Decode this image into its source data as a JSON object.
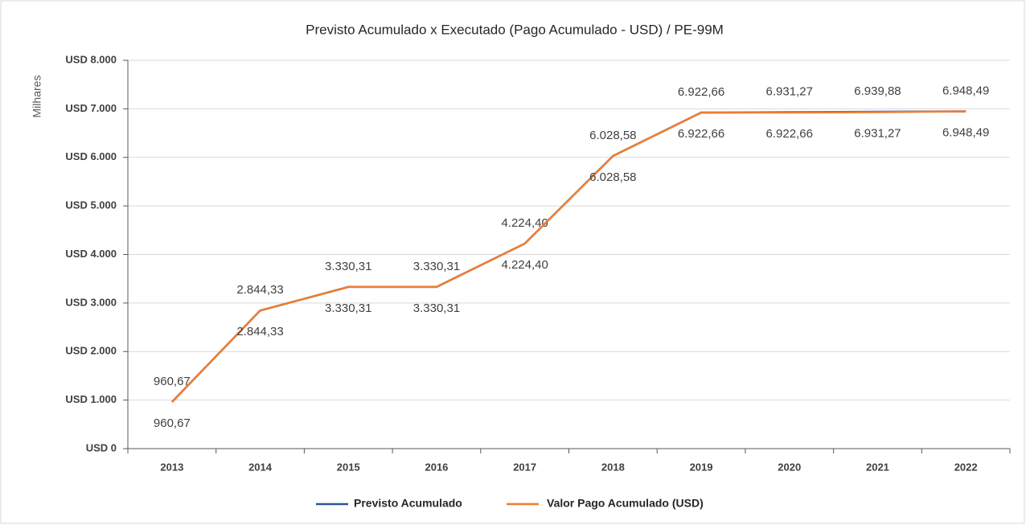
{
  "chart_data": {
    "type": "line",
    "title": "Previsto Acumulado x Executado (Pago Acumulado - USD) / PE-99M",
    "y_axis_label": "Milhares",
    "categories": [
      "2013",
      "2014",
      "2015",
      "2016",
      "2017",
      "2018",
      "2019",
      "2020",
      "2021",
      "2022"
    ],
    "series": [
      {
        "name": "Previsto Acumulado",
        "color": "#2f5597",
        "values": [
          960.67,
          2844.33,
          3330.31,
          3330.31,
          4224.4,
          6028.58,
          6922.66,
          6931.27,
          6939.88,
          6948.49
        ],
        "value_labels": [
          "960,67",
          "2.844,33",
          "3.330,31",
          "3.330,31",
          "4.224,40",
          "6.028,58",
          "6.922,66",
          "6.931,27",
          "6.939,88",
          "6.948,49"
        ]
      },
      {
        "name": "Valor Pago Acumulado (USD)",
        "color": "#ed7d31",
        "values": [
          960.67,
          2844.33,
          3330.31,
          3330.31,
          4224.4,
          6028.58,
          6922.66,
          6922.66,
          6931.27,
          6948.49
        ],
        "value_labels": [
          "960,67",
          "2.844,33",
          "3.330,31",
          "3.330,31",
          "4.224,40",
          "6.028,58",
          "6.922,66",
          "6.922,66",
          "6.931,27",
          "6.948,49"
        ]
      }
    ],
    "ylim": [
      0,
      8000
    ],
    "yticks": [
      {
        "value": 0,
        "label": "USD 0"
      },
      {
        "value": 1000,
        "label": "USD 1.000"
      },
      {
        "value": 2000,
        "label": "USD 2.000"
      },
      {
        "value": 3000,
        "label": "USD 3.000"
      },
      {
        "value": 4000,
        "label": "USD 4.000"
      },
      {
        "value": 5000,
        "label": "USD 5.000"
      },
      {
        "value": 6000,
        "label": "USD 6.000"
      },
      {
        "value": 7000,
        "label": "USD 7.000"
      },
      {
        "value": 8000,
        "label": "USD 8.000"
      }
    ],
    "grid": true,
    "legend": "bottom"
  }
}
